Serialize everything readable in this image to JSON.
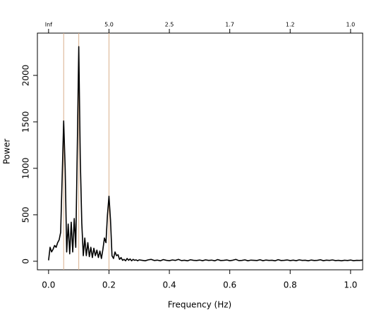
{
  "chart_data": {
    "type": "line",
    "xlabel": "Frequency (Hz)",
    "ylabel": "Power",
    "x": [
      0,
      0.005,
      0.01,
      0.015,
      0.02,
      0.025,
      0.03,
      0.035,
      0.04,
      0.045,
      0.05,
      0.055,
      0.06,
      0.065,
      0.07,
      0.075,
      0.08,
      0.085,
      0.09,
      0.095,
      0.1,
      0.105,
      0.11,
      0.115,
      0.12,
      0.125,
      0.13,
      0.135,
      0.14,
      0.145,
      0.15,
      0.155,
      0.16,
      0.165,
      0.17,
      0.175,
      0.18,
      0.185,
      0.19,
      0.195,
      0.2,
      0.205,
      0.21,
      0.215,
      0.22,
      0.225,
      0.23,
      0.235,
      0.24,
      0.245,
      0.25,
      0.255,
      0.26,
      0.265,
      0.27,
      0.275,
      0.28,
      0.285,
      0.29,
      0.295,
      0.3,
      0.31,
      0.32,
      0.33,
      0.34,
      0.35,
      0.36,
      0.37,
      0.38,
      0.39,
      0.4,
      0.41,
      0.42,
      0.43,
      0.44,
      0.45,
      0.46,
      0.47,
      0.48,
      0.49,
      0.5,
      0.51,
      0.52,
      0.53,
      0.54,
      0.55,
      0.56,
      0.57,
      0.58,
      0.59,
      0.6,
      0.61,
      0.62,
      0.63,
      0.64,
      0.65,
      0.66,
      0.67,
      0.68,
      0.69,
      0.7,
      0.71,
      0.72,
      0.73,
      0.74,
      0.75,
      0.76,
      0.77,
      0.78,
      0.79,
      0.8,
      0.81,
      0.82,
      0.83,
      0.84,
      0.85,
      0.86,
      0.87,
      0.88,
      0.89,
      0.9,
      0.91,
      0.92,
      0.93,
      0.94,
      0.95,
      0.96,
      0.97,
      0.98,
      0.99,
      1,
      1.01,
      1.02,
      1.03,
      1.04
    ],
    "series": [
      {
        "color": "#000000",
        "values": [
          10,
          150,
          100,
          130,
          170,
          150,
          200,
          230,
          310,
          900,
          1510,
          1000,
          100,
          400,
          80,
          420,
          100,
          460,
          150,
          1200,
          2310,
          1100,
          410,
          60,
          250,
          60,
          200,
          50,
          150,
          40,
          140,
          60,
          120,
          40,
          110,
          30,
          130,
          250,
          200,
          500,
          700,
          450,
          60,
          30,
          100,
          60,
          70,
          20,
          40,
          10,
          20,
          5,
          30,
          10,
          25,
          5,
          20,
          10,
          15,
          5,
          15,
          10,
          5,
          15,
          20,
          8,
          12,
          5,
          18,
          10,
          6,
          14,
          9,
          20,
          7,
          11,
          5,
          16,
          10,
          8,
          13,
          6,
          15,
          9,
          12,
          5,
          18,
          8,
          10,
          14,
          6,
          11,
          20,
          7,
          9,
          15,
          5,
          12,
          10,
          8,
          16,
          6,
          13,
          9,
          11,
          5,
          17,
          8,
          10,
          14,
          7,
          12,
          6,
          15,
          9,
          11,
          5,
          13,
          8,
          10,
          16,
          6,
          12,
          9,
          14,
          7,
          10,
          5,
          11,
          8,
          13,
          6,
          10,
          9,
          12
        ]
      }
    ],
    "xlim": [
      -0.037,
      1.04
    ],
    "ylim": [
      -92,
      2455
    ],
    "xticks": [
      {
        "value": 0,
        "label": "0.0"
      },
      0.2,
      0.4,
      0.6,
      0.8,
      {
        "value": 1,
        "label": "1.0"
      }
    ],
    "yticks": [
      0,
      500,
      1000,
      1500,
      2000
    ],
    "x2ticks": [
      {
        "value": 0,
        "label": "Inf"
      },
      {
        "value": 0.2,
        "label": "5.0"
      },
      {
        "value": 0.4,
        "label": "2.5"
      },
      {
        "value": 0.6,
        "label": "1.7"
      },
      {
        "value": 0.8,
        "label": "1.2"
      },
      {
        "value": 1,
        "label": "1.0"
      }
    ],
    "vlines": [
      0.05,
      0.1,
      0.2
    ],
    "vline_color": "#d9b08c"
  }
}
